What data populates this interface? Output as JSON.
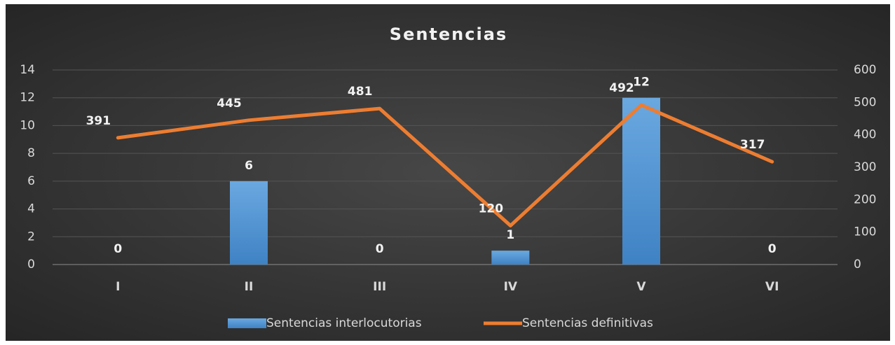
{
  "chart_data": {
    "type": "bar",
    "title": "Sentencias",
    "categories": [
      "I",
      "II",
      "III",
      "IV",
      "V",
      "VI"
    ],
    "series": [
      {
        "name": "Sentencias interlocutorias",
        "type": "bar",
        "color": "#5b9bd5",
        "values": [
          0,
          6,
          0,
          1,
          12,
          0
        ]
      },
      {
        "name": "Sentencias definitivas",
        "type": "line",
        "axis": "y2",
        "color": "#ed7d31",
        "values": [
          391,
          445,
          481,
          120,
          492,
          317
        ]
      }
    ],
    "ylim": [
      0,
      14
    ],
    "yticks": [
      0,
      2,
      4,
      6,
      8,
      10,
      12,
      14
    ],
    "y2lim": [
      0,
      600
    ],
    "y2ticks": [
      0,
      100,
      200,
      300,
      400,
      500,
      600
    ],
    "grid": true,
    "legend": "bottom"
  }
}
